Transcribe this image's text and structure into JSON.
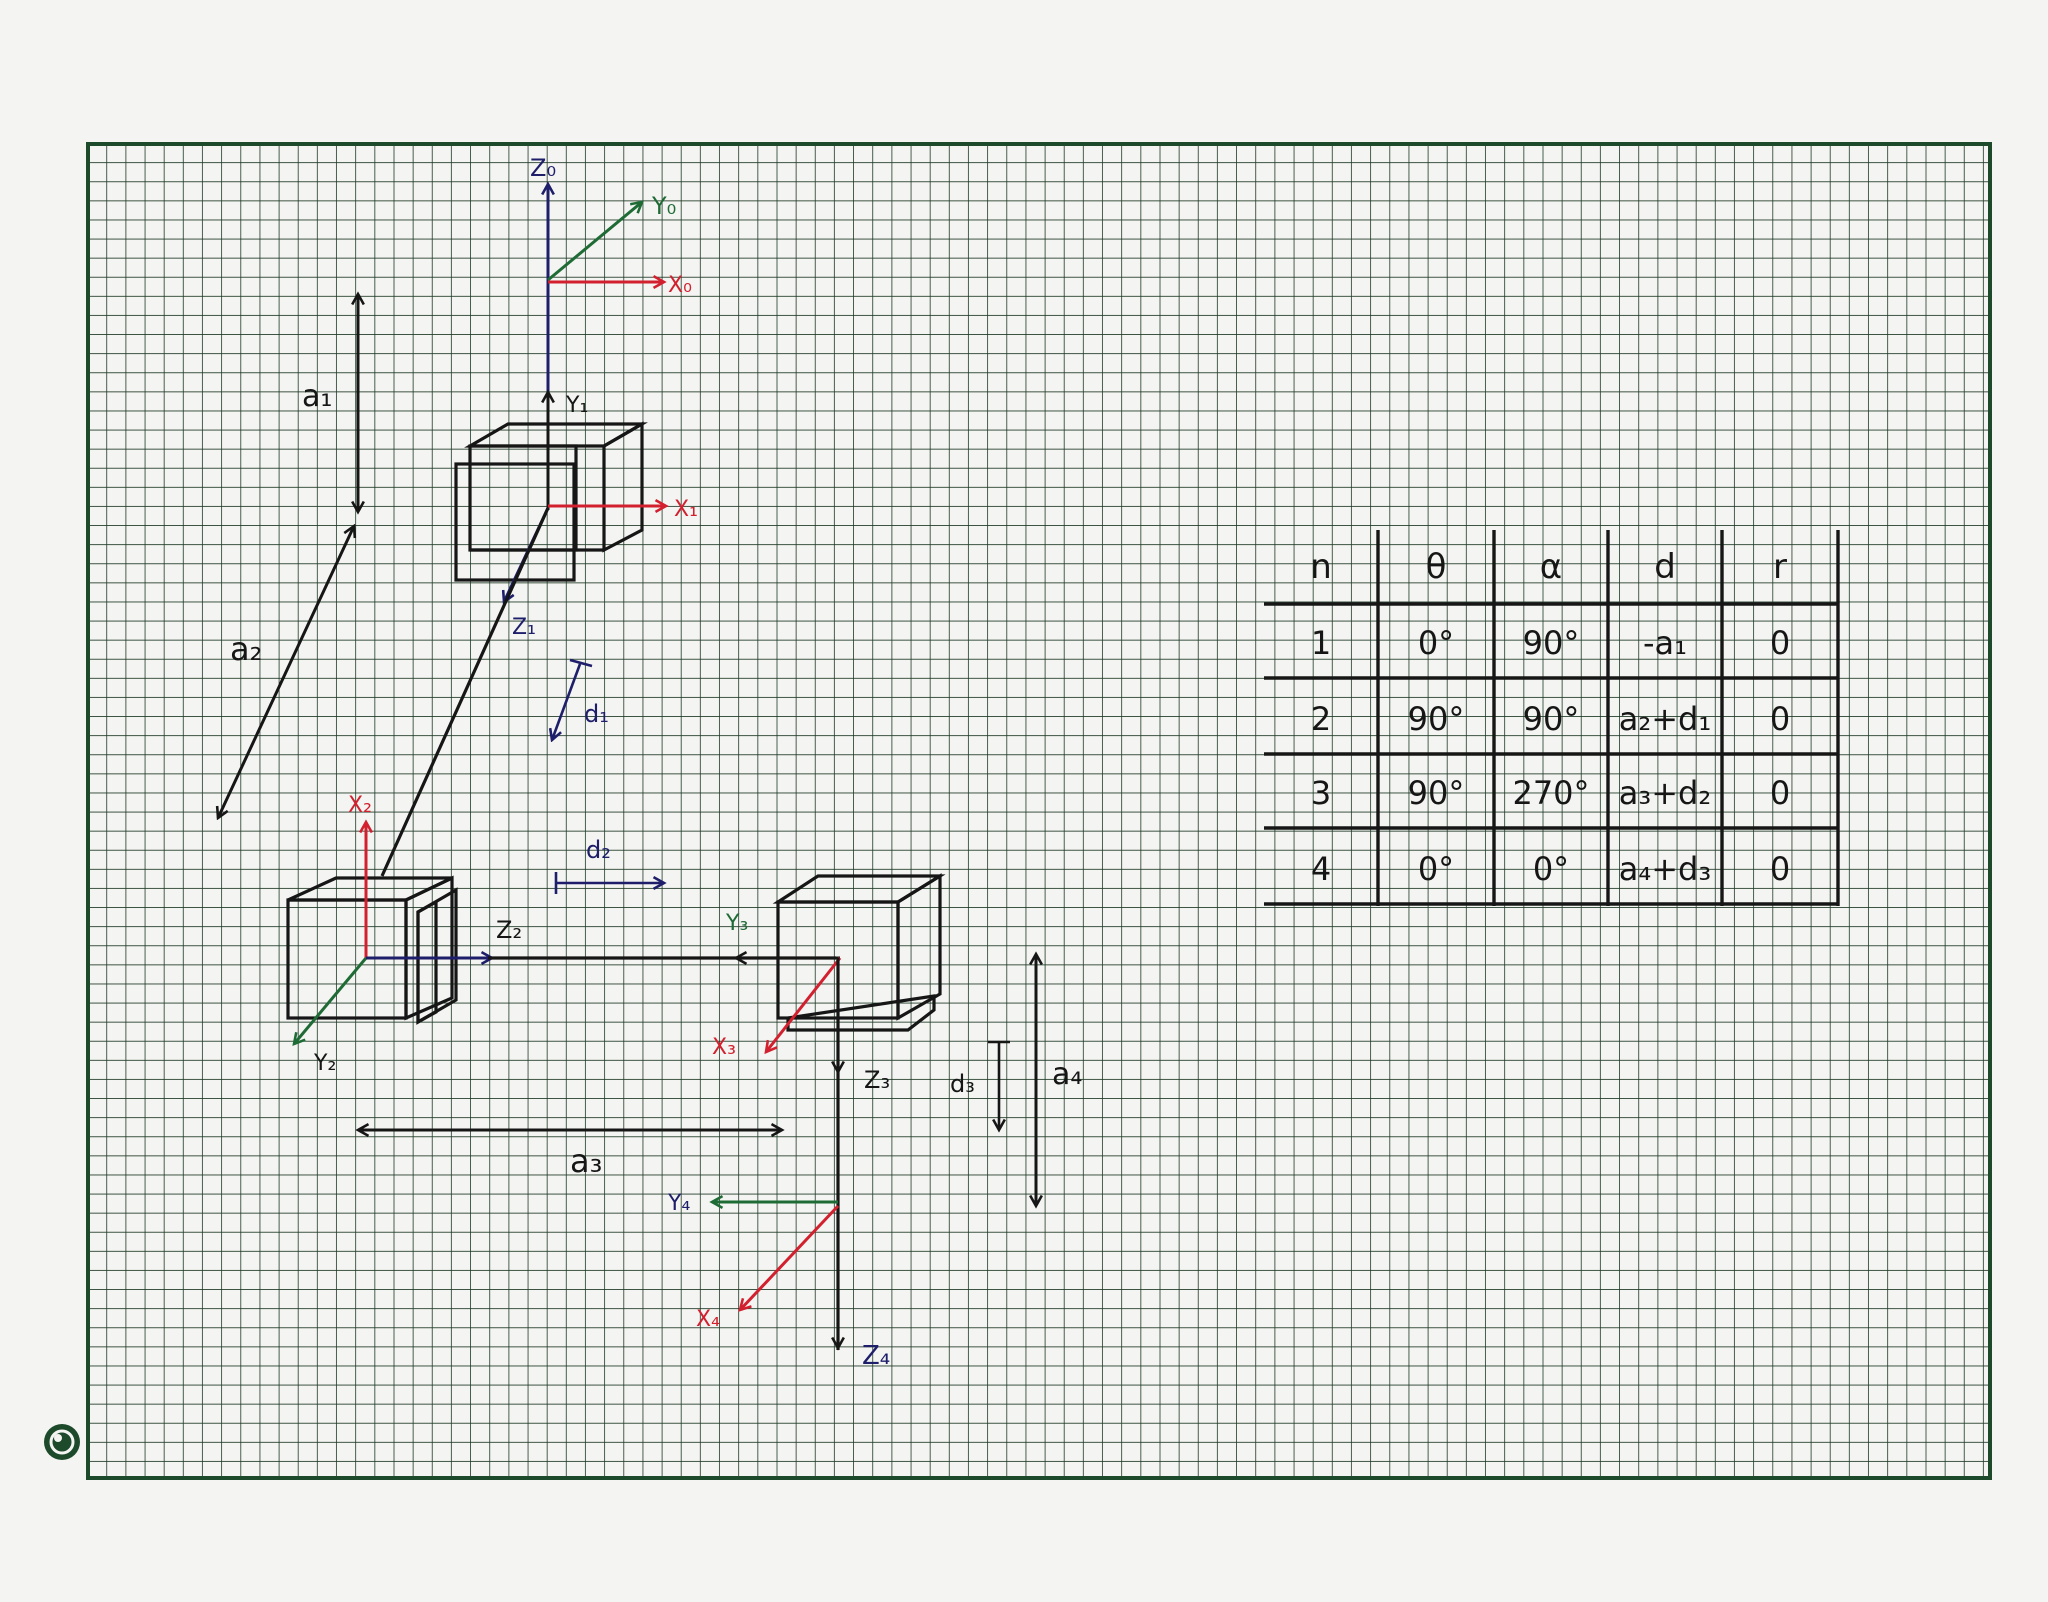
{
  "colors": {
    "paper": "#f4f4f2",
    "grid": "#1f3a26",
    "frame": "#1c4a2a",
    "ink": "#161616",
    "red": "#d2202e",
    "green": "#1f6b35",
    "navy": "#1e1e6b"
  },
  "frames": {
    "f0": {
      "z": "Z₀",
      "y": "Y₀",
      "x": "X₀"
    },
    "f1": {
      "y": "Y₁",
      "x": "X₁",
      "z": "Z₁"
    },
    "f2": {
      "x": "X₂",
      "z": "Z₂",
      "y": "Y₂"
    },
    "f3": {
      "y": "Y₃",
      "x": "X₃",
      "z": "Z₃"
    },
    "f4": {
      "y": "Y₄",
      "x": "X₄",
      "z": "Z₄"
    }
  },
  "dimensions": {
    "a1": "a₁",
    "a2": "a₂",
    "a3": "a₃",
    "a4": "a₄",
    "d1": "d₁",
    "d2": "d₂",
    "d3": "d₃"
  },
  "dh_table": {
    "headers": [
      "n",
      "θ",
      "α",
      "d",
      "r"
    ],
    "rows": [
      [
        "1",
        "0°",
        "90°",
        "-a₁",
        "0"
      ],
      [
        "2",
        "90°",
        "90°",
        "a₂+d₁",
        "0"
      ],
      [
        "3",
        "90°",
        "270°",
        "a₃+d₂",
        "0"
      ],
      [
        "4",
        "0°",
        "0°",
        "a₄+d₃",
        "0"
      ]
    ]
  }
}
